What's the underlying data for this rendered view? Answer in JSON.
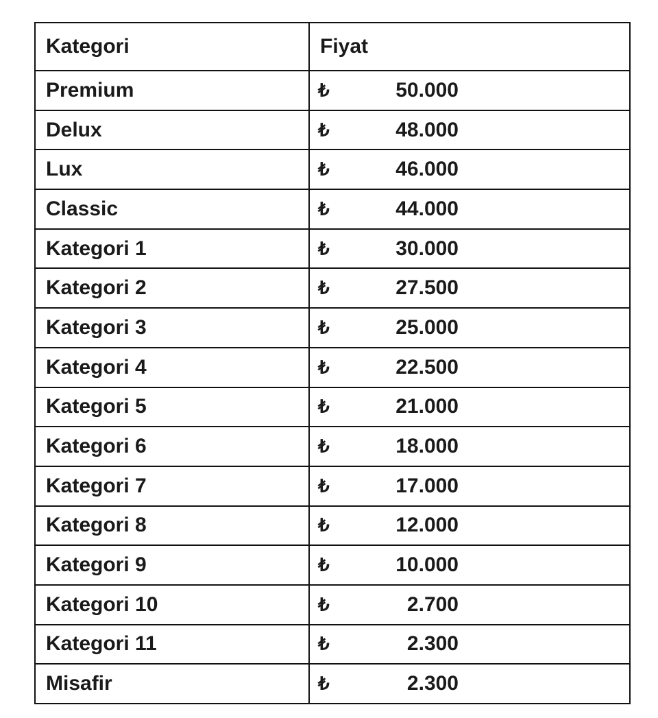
{
  "table": {
    "headers": [
      "Kategori",
      "Fiyat"
    ],
    "currency_symbol": "₺",
    "rows": [
      {
        "category": "Premium",
        "price": "50.000"
      },
      {
        "category": "Delux",
        "price": "48.000"
      },
      {
        "category": "Lux",
        "price": "46.000"
      },
      {
        "category": "Classic",
        "price": "44.000"
      },
      {
        "category": "Kategori 1",
        "price": "30.000"
      },
      {
        "category": "Kategori 2",
        "price": "27.500"
      },
      {
        "category": "Kategori 3",
        "price": "25.000"
      },
      {
        "category": "Kategori 4",
        "price": "22.500"
      },
      {
        "category": "Kategori 5",
        "price": "21.000"
      },
      {
        "category": "Kategori 6",
        "price": "18.000"
      },
      {
        "category": "Kategori 7",
        "price": "17.000"
      },
      {
        "category": "Kategori 8",
        "price": "12.000"
      },
      {
        "category": "Kategori 9",
        "price": "10.000"
      },
      {
        "category": "Kategori 10",
        "price": "2.700"
      },
      {
        "category": "Kategori 11",
        "price": "2.300"
      },
      {
        "category": "Misafir",
        "price": "2.300"
      }
    ]
  }
}
